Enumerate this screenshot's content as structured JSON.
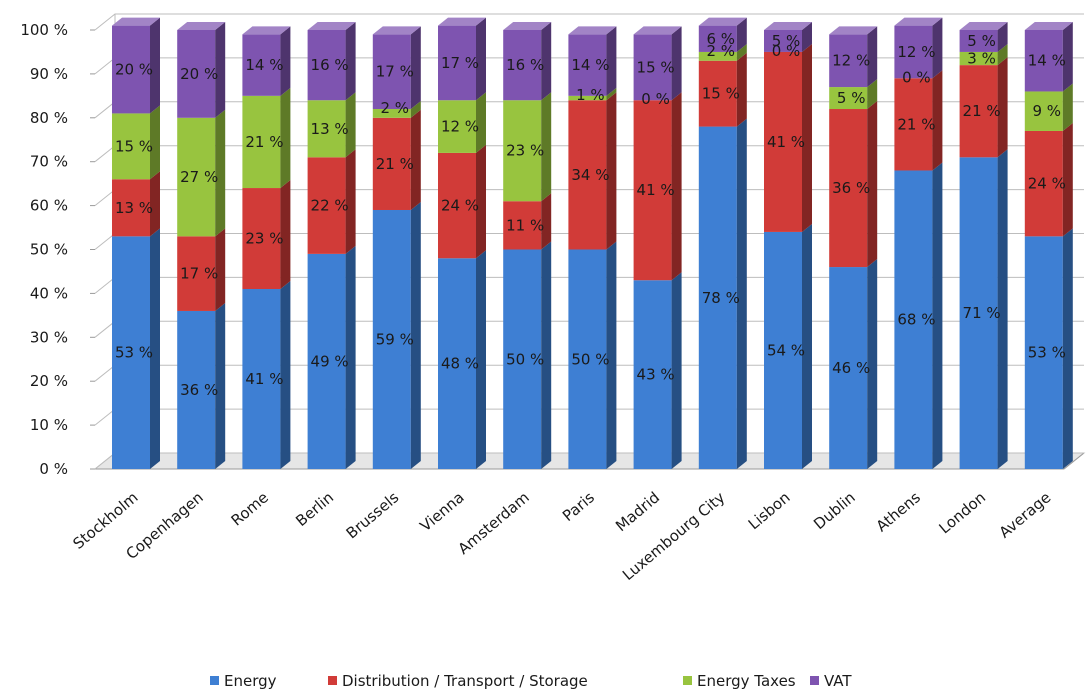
{
  "chart_data": {
    "type": "bar",
    "stacked": true,
    "percent": true,
    "three_d": true,
    "categories": [
      "Stockholm",
      "Copenhagen",
      "Rome",
      "Berlin",
      "Brussels",
      "Vienna",
      "Amsterdam",
      "Paris",
      "Madrid",
      "Luxembourg City",
      "Lisbon",
      "Dublin",
      "Athens",
      "London",
      "Average"
    ],
    "series": [
      {
        "name": "Energy",
        "color": "#3E7FD3",
        "values": [
          53,
          36,
          41,
          49,
          59,
          48,
          50,
          50,
          43,
          78,
          54,
          46,
          68,
          71,
          53
        ],
        "labels": [
          "53 %",
          "36 %",
          "41 %",
          "49 %",
          "59 %",
          "48 %",
          "50 %",
          "50 %",
          "43 %",
          "78 %",
          "54 %",
          "46 %",
          "68 %",
          "71 %",
          "53 %"
        ]
      },
      {
        "name": "Distribution / Transport / Storage",
        "color": "#D13B38",
        "values": [
          13,
          17,
          23,
          22,
          21,
          24,
          11,
          34,
          41,
          15,
          41,
          36,
          21,
          21,
          24
        ],
        "labels": [
          "13 %",
          "17 %",
          "23 %",
          "22 %",
          "21 %",
          "24 %",
          "11 %",
          "34 %",
          "41 %",
          "15 %",
          "41 %",
          "36 %",
          "21 %",
          "21 %",
          "24 %"
        ]
      },
      {
        "name": "Energy Taxes",
        "color": "#98C43F",
        "values": [
          15,
          27,
          21,
          13,
          2,
          12,
          23,
          1,
          0,
          2,
          0,
          5,
          0,
          3,
          9
        ],
        "labels": [
          "15 %",
          "27 %",
          "21 %",
          "13 %",
          "2 %",
          "12 %",
          "23 %",
          "1 %",
          "0 %",
          "2 %",
          "0 %",
          "5 %",
          "0 %",
          "3 %",
          "9 %"
        ]
      },
      {
        "name": "VAT",
        "color": "#7E54B0",
        "values": [
          20,
          20,
          14,
          16,
          17,
          17,
          16,
          14,
          15,
          6,
          5,
          12,
          12,
          5,
          14
        ],
        "labels": [
          "20 %",
          "20 %",
          "14 %",
          "16 %",
          "17 %",
          "17 %",
          "16 %",
          "14 %",
          "15 %",
          "6 %",
          "5 %",
          "12 %",
          "12 %",
          "5 %",
          "14 %"
        ]
      }
    ],
    "y_ticks": [
      "0 %",
      "10 %",
      "20 %",
      "30 %",
      "40 %",
      "50 %",
      "60 %",
      "70 %",
      "80 %",
      "90 %",
      "100 %"
    ],
    "ylim": [
      0,
      100
    ],
    "grid": true,
    "legend_position": "bottom",
    "title": "",
    "xlabel": "",
    "ylabel": ""
  }
}
